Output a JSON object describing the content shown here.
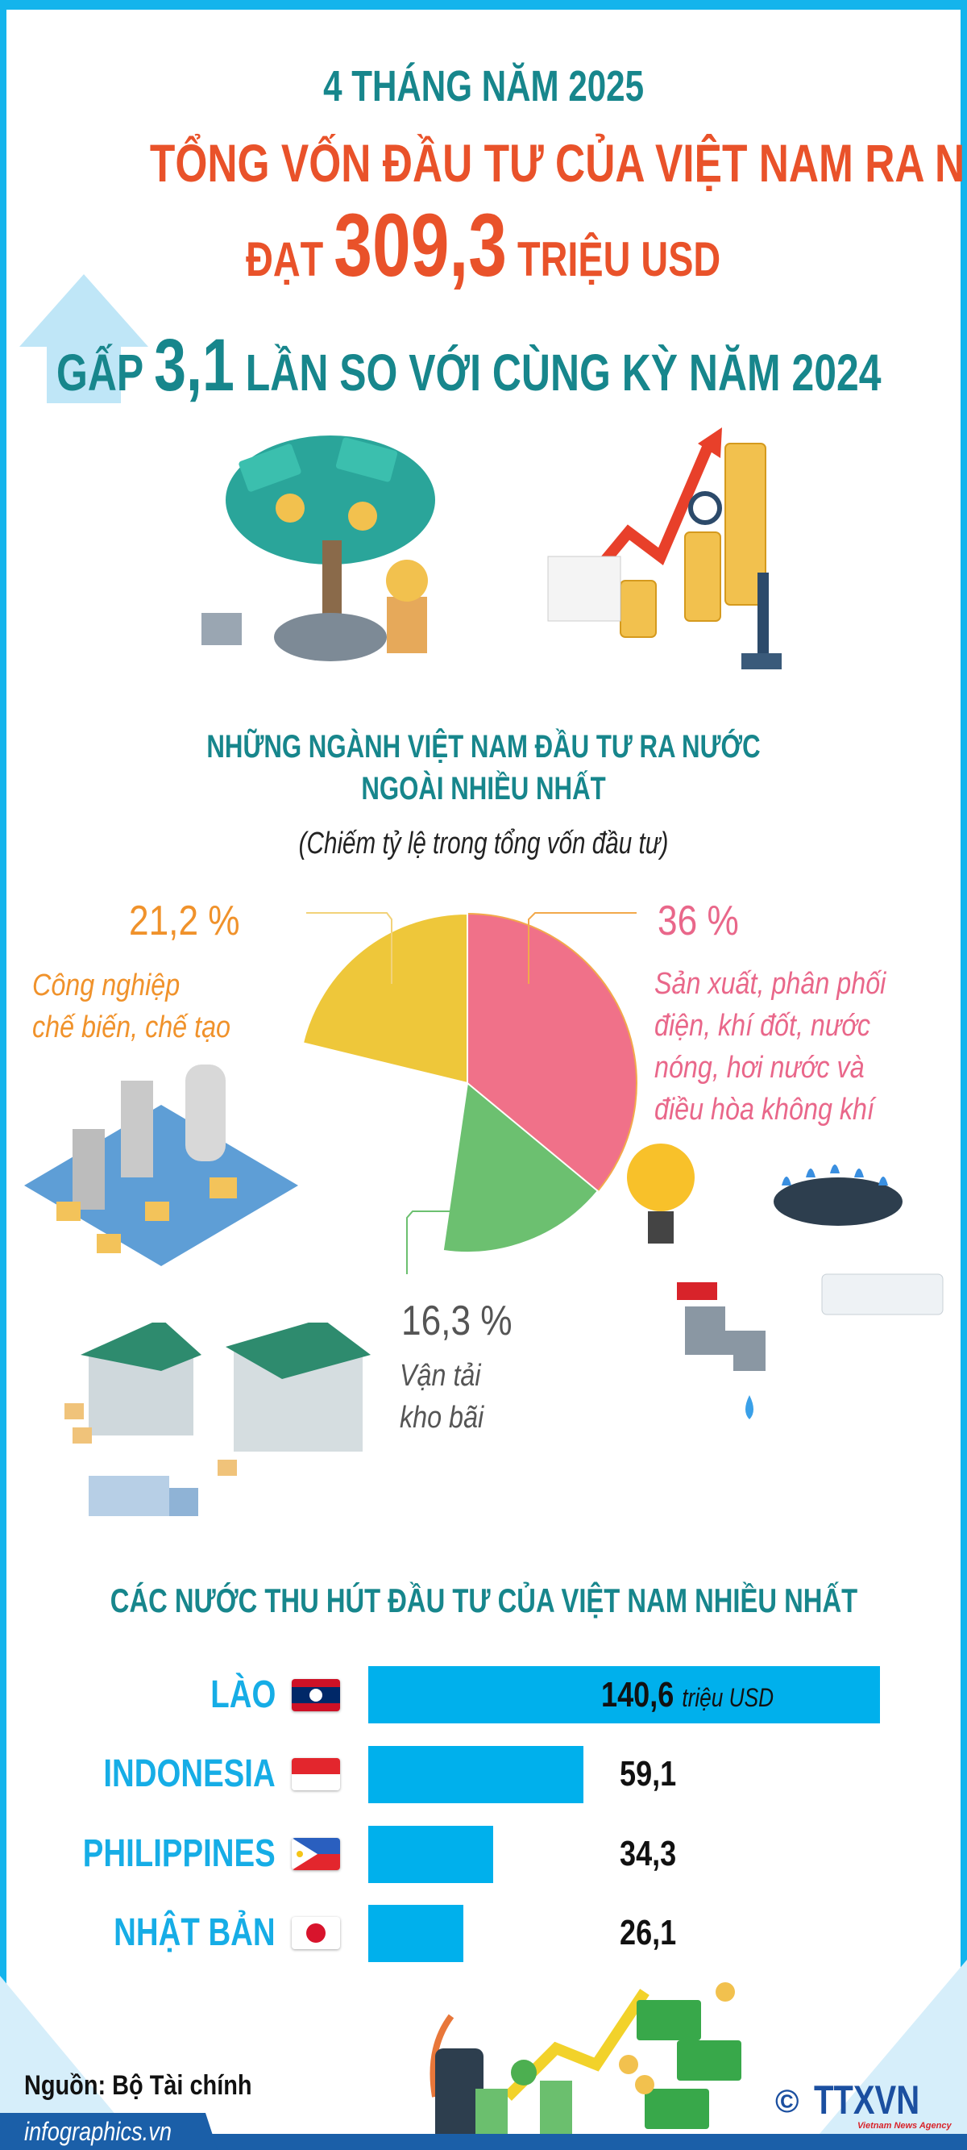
{
  "header": {
    "line1": "4 THÁNG NĂM 2025",
    "line2": "TỔNG VỐN ĐẦU TƯ CỦA VIỆT NAM RA NƯỚC NGOÀI",
    "line3_prefix": "ĐẠT",
    "line3_value": "309,3",
    "line3_suffix": "TRIỆU USD",
    "line4_prefix": "GẤP",
    "line4_value": "3,1",
    "line4_suffix": "LẦN SO VỚI CÙNG KỲ NĂM 2024",
    "arrow_icon": "up-arrow-icon"
  },
  "colors": {
    "teal": "#17868c",
    "orange": "#e9522a",
    "bar": "#00b0ec",
    "frame": "#14b4ec"
  },
  "chart_data": [
    {
      "type": "pie",
      "title": "NHỮNG NGÀNH VIỆT NAM ĐẦU TƯ RA NƯỚC NGOÀI NHIỀU NHẤT",
      "subtitle": "(Chiếm tỷ lệ trong tổng vốn đầu tư)",
      "slices": [
        {
          "label_line1": "Sản xuất, phân phối",
          "label_line2": "điện, khí đốt, nước",
          "label_line3": "nóng, hơi nước và",
          "label_line4": "điều hòa không khí",
          "value": 36,
          "value_label": "36 %",
          "color": "#f07189"
        },
        {
          "label_line1": "Vận tải",
          "label_line2": "kho bãi",
          "value": 16.3,
          "value_label": "16,3 %",
          "color": "#6cc070"
        },
        {
          "label_line1": "Công nghiệp",
          "label_line2": "chế biến, chế tạo",
          "value": 21.2,
          "value_label": "21,2 %",
          "color": "#eec73a"
        }
      ]
    },
    {
      "type": "bar",
      "orientation": "horizontal",
      "title": "CÁC NƯỚC THU HÚT ĐẦU TƯ CỦA VIỆT NAM NHIỀU NHẤT",
      "unit": "triệu USD",
      "categories": [
        "LÀO",
        "INDONESIA",
        "PHILIPPINES",
        "NHẬT BẢN"
      ],
      "values": [
        140.6,
        59.1,
        34.3,
        26.1
      ],
      "value_labels": [
        "140,6",
        "59,1",
        "34,3",
        "26,1"
      ]
    }
  ],
  "footer": {
    "source": "Nguồn: Bộ Tài chính",
    "website": "infographics.vn",
    "copyright": "©",
    "logo_text": "TTXVN",
    "logo_sub": "Vietnam News Agency"
  }
}
